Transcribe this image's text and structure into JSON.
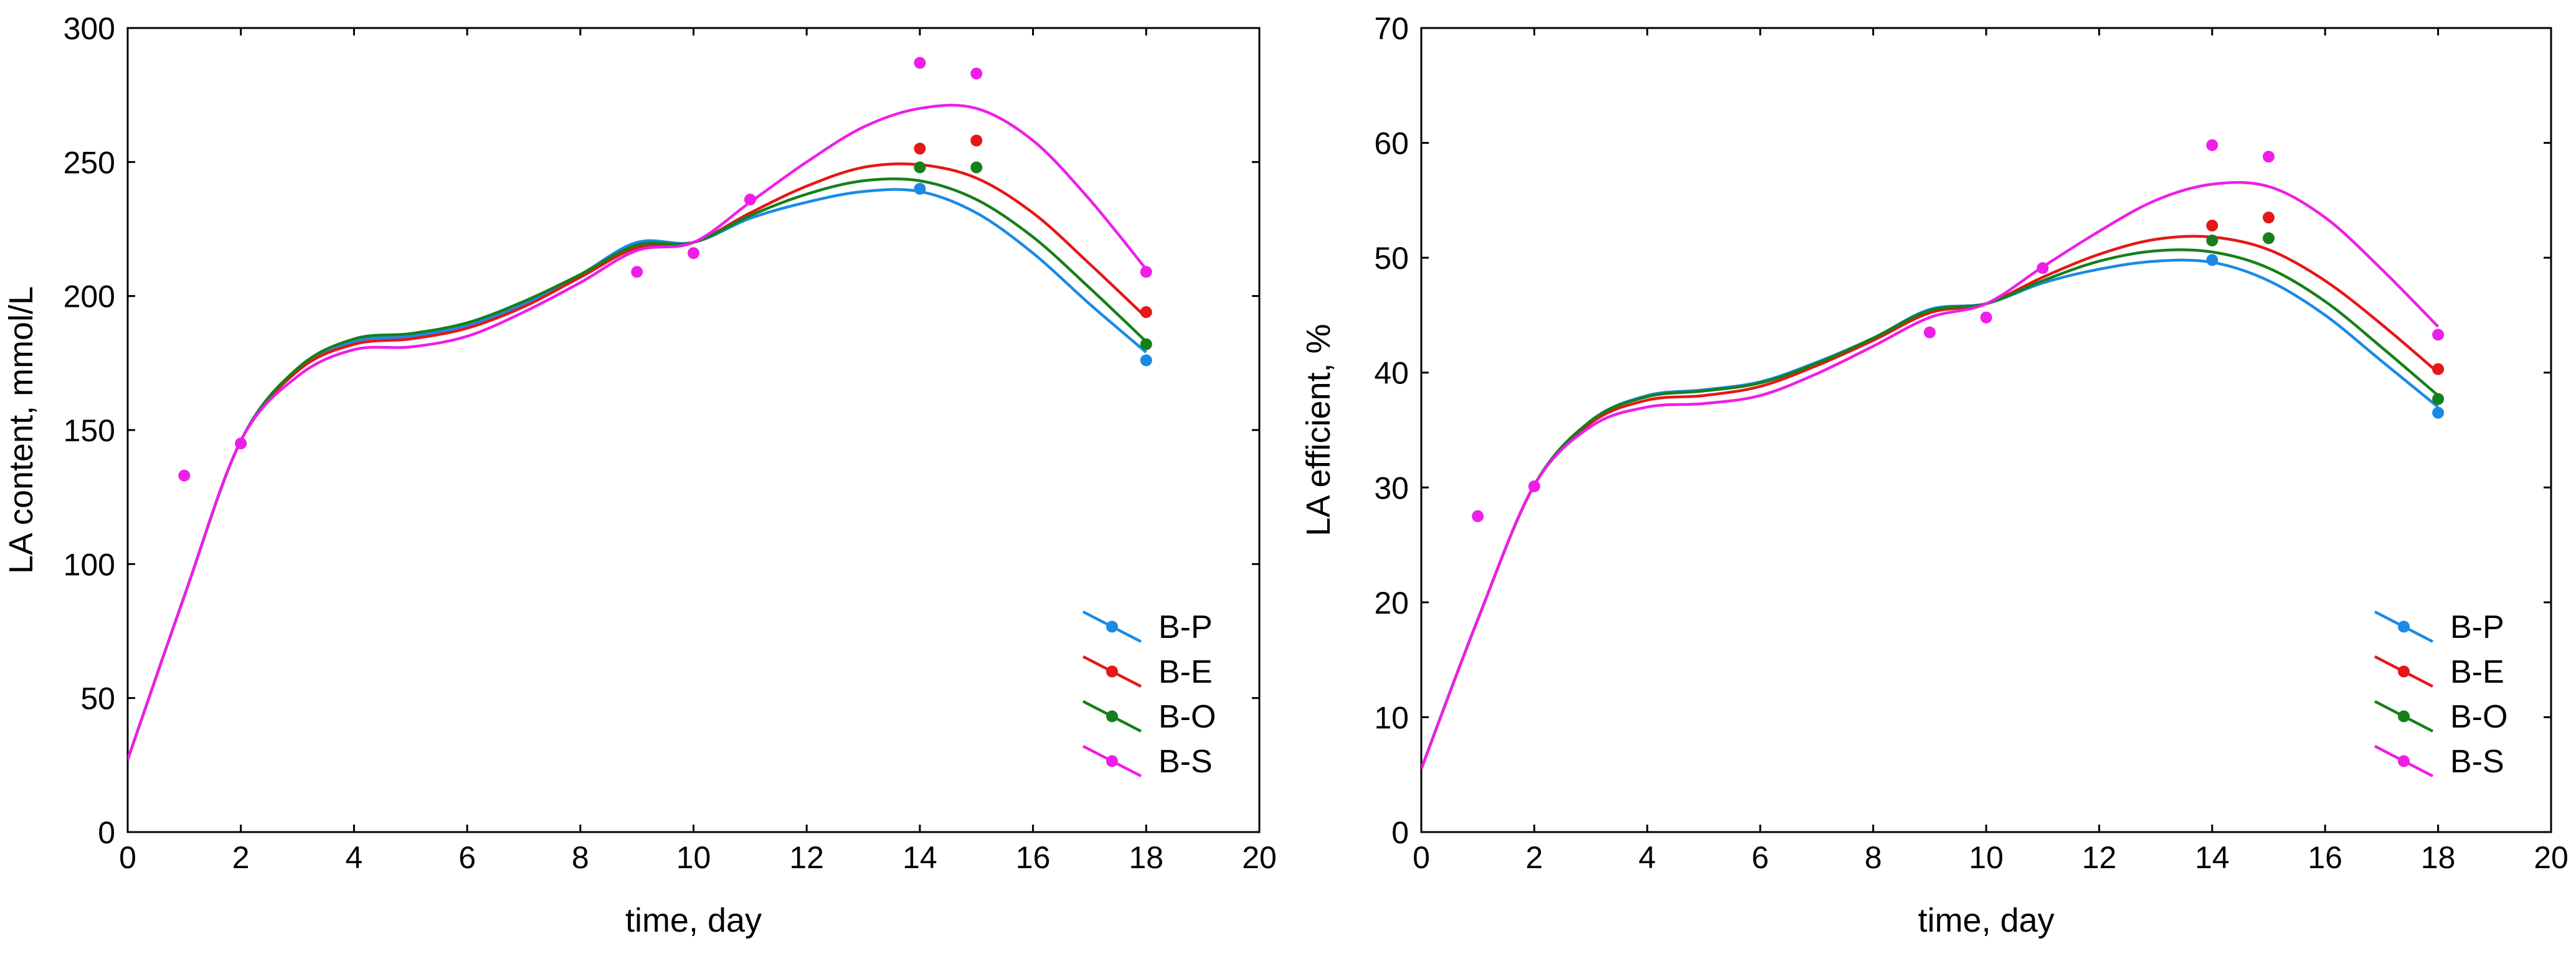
{
  "chart_data": [
    {
      "type": "line",
      "title": "",
      "xlabel": "time, day",
      "ylabel": "LA content, mmol/L",
      "xlim": [
        0,
        20
      ],
      "ylim": [
        0,
        300
      ],
      "xticks": [
        0,
        2,
        4,
        6,
        8,
        10,
        12,
        14,
        16,
        18,
        20
      ],
      "yticks": [
        0,
        50,
        100,
        150,
        200,
        250,
        300
      ],
      "grid": false,
      "legend_position": "bottom-right",
      "series": [
        {
          "name": "B-P",
          "color": "#1a8ae6",
          "points": [
            [
              14,
              240
            ],
            [
              18,
              176
            ]
          ],
          "curve": [
            [
              0,
              27
            ],
            [
              1,
              88
            ],
            [
              2,
              146
            ],
            [
              3,
              172
            ],
            [
              4,
              183
            ],
            [
              5,
              185
            ],
            [
              6,
              189
            ],
            [
              7,
              197
            ],
            [
              8,
              208
            ],
            [
              9,
              220
            ],
            [
              10,
              220
            ],
            [
              11,
              229
            ],
            [
              12,
              235
            ],
            [
              13,
              239
            ],
            [
              14,
              239
            ],
            [
              15,
              231
            ],
            [
              16,
              216
            ],
            [
              17,
              197
            ],
            [
              18,
              179
            ]
          ]
        },
        {
          "name": "B-E",
          "color": "#e61717",
          "points": [
            [
              14,
              255
            ],
            [
              15,
              258
            ],
            [
              18,
              194
            ]
          ],
          "curve": [
            [
              0,
              27
            ],
            [
              1,
              88
            ],
            [
              2,
              146
            ],
            [
              3,
              172
            ],
            [
              4,
              182
            ],
            [
              5,
              184
            ],
            [
              6,
              188
            ],
            [
              7,
              196
            ],
            [
              8,
              207
            ],
            [
              9,
              218
            ],
            [
              10,
              220
            ],
            [
              11,
              231
            ],
            [
              12,
              241
            ],
            [
              13,
              248
            ],
            [
              14,
              249
            ],
            [
              15,
              244
            ],
            [
              16,
              231
            ],
            [
              17,
              212
            ],
            [
              18,
              192
            ]
          ]
        },
        {
          "name": "B-O",
          "color": "#15801a",
          "points": [
            [
              14,
              248
            ],
            [
              15,
              248
            ],
            [
              18,
              182
            ]
          ],
          "curve": [
            [
              0,
              27
            ],
            [
              1,
              88
            ],
            [
              2,
              146
            ],
            [
              3,
              173
            ],
            [
              4,
              184
            ],
            [
              5,
              186
            ],
            [
              6,
              190
            ],
            [
              7,
              198
            ],
            [
              8,
              208
            ],
            [
              9,
              219
            ],
            [
              10,
              220
            ],
            [
              11,
              230
            ],
            [
              12,
              238
            ],
            [
              13,
              243
            ],
            [
              14,
              243
            ],
            [
              15,
              236
            ],
            [
              16,
              222
            ],
            [
              17,
              203
            ],
            [
              18,
              183
            ]
          ]
        },
        {
          "name": "B-S",
          "color": "#ee1ee8",
          "points": [
            [
              1,
              133
            ],
            [
              2,
              145
            ],
            [
              9,
              209
            ],
            [
              10,
              216
            ],
            [
              11,
              236
            ],
            [
              14,
              287
            ],
            [
              15,
              283
            ],
            [
              18,
              209
            ]
          ],
          "curve": [
            [
              0,
              27
            ],
            [
              1,
              88
            ],
            [
              2,
              146
            ],
            [
              3,
              170
            ],
            [
              4,
              180
            ],
            [
              5,
              181
            ],
            [
              6,
              185
            ],
            [
              7,
              194
            ],
            [
              8,
              205
            ],
            [
              9,
              217
            ],
            [
              10,
              220
            ],
            [
              11,
              235
            ],
            [
              12,
              250
            ],
            [
              13,
              263
            ],
            [
              14,
              270
            ],
            [
              15,
              270
            ],
            [
              16,
              258
            ],
            [
              17,
              236
            ],
            [
              18,
              210
            ]
          ]
        }
      ]
    },
    {
      "type": "line",
      "title": "",
      "xlabel": "time, day",
      "ylabel": "LA efficient, %",
      "xlim": [
        0,
        20
      ],
      "ylim": [
        0,
        70
      ],
      "xticks": [
        0,
        2,
        4,
        6,
        8,
        10,
        12,
        14,
        16,
        18,
        20
      ],
      "yticks": [
        0,
        10,
        20,
        30,
        40,
        50,
        60,
        70
      ],
      "grid": false,
      "legend_position": "bottom-right",
      "series": [
        {
          "name": "B-P",
          "color": "#1a8ae6",
          "points": [
            [
              14,
              49.8
            ],
            [
              18,
              36.5
            ]
          ],
          "curve": [
            [
              0,
              5.5
            ],
            [
              1,
              18.5
            ],
            [
              2,
              30.2
            ],
            [
              3,
              35.8
            ],
            [
              4,
              38.0
            ],
            [
              5,
              38.5
            ],
            [
              6,
              39.2
            ],
            [
              7,
              40.9
            ],
            [
              8,
              43.0
            ],
            [
              9,
              45.5
            ],
            [
              10,
              46.0
            ],
            [
              11,
              47.8
            ],
            [
              12,
              49.0
            ],
            [
              13,
              49.7
            ],
            [
              14,
              49.6
            ],
            [
              15,
              48.0
            ],
            [
              16,
              45.0
            ],
            [
              17,
              41.0
            ],
            [
              18,
              37.0
            ]
          ]
        },
        {
          "name": "B-E",
          "color": "#e61717",
          "points": [
            [
              14,
              52.8
            ],
            [
              15,
              53.5
            ],
            [
              18,
              40.3
            ]
          ],
          "curve": [
            [
              0,
              5.5
            ],
            [
              1,
              18.5
            ],
            [
              2,
              30.2
            ],
            [
              3,
              35.6
            ],
            [
              4,
              37.6
            ],
            [
              5,
              38.0
            ],
            [
              6,
              38.8
            ],
            [
              7,
              40.6
            ],
            [
              8,
              42.8
            ],
            [
              9,
              45.2
            ],
            [
              10,
              46.0
            ],
            [
              11,
              48.3
            ],
            [
              12,
              50.3
            ],
            [
              13,
              51.6
            ],
            [
              14,
              51.8
            ],
            [
              15,
              50.7
            ],
            [
              16,
              48.0
            ],
            [
              17,
              44.2
            ],
            [
              18,
              40.0
            ]
          ]
        },
        {
          "name": "B-O",
          "color": "#15801a",
          "points": [
            [
              14,
              51.5
            ],
            [
              15,
              51.7
            ],
            [
              18,
              37.7
            ]
          ],
          "curve": [
            [
              0,
              5.5
            ],
            [
              1,
              18.5
            ],
            [
              2,
              30.2
            ],
            [
              3,
              35.8
            ],
            [
              4,
              37.9
            ],
            [
              5,
              38.4
            ],
            [
              6,
              39.1
            ],
            [
              7,
              40.8
            ],
            [
              8,
              43.0
            ],
            [
              9,
              45.4
            ],
            [
              10,
              46.0
            ],
            [
              11,
              48.0
            ],
            [
              12,
              49.7
            ],
            [
              13,
              50.6
            ],
            [
              14,
              50.5
            ],
            [
              15,
              49.1
            ],
            [
              16,
              46.2
            ],
            [
              17,
              42.2
            ],
            [
              18,
              38.0
            ]
          ]
        },
        {
          "name": "B-S",
          "color": "#ee1ee8",
          "points": [
            [
              1,
              27.5
            ],
            [
              2,
              30.1
            ],
            [
              9,
              43.5
            ],
            [
              10,
              44.8
            ],
            [
              11,
              49.1
            ],
            [
              14,
              59.8
            ],
            [
              15,
              58.8
            ],
            [
              18,
              43.3
            ]
          ],
          "curve": [
            [
              0,
              5.5
            ],
            [
              1,
              18.5
            ],
            [
              2,
              30.2
            ],
            [
              3,
              35.3
            ],
            [
              4,
              37.0
            ],
            [
              5,
              37.3
            ],
            [
              6,
              38.0
            ],
            [
              7,
              39.9
            ],
            [
              8,
              42.3
            ],
            [
              9,
              44.8
            ],
            [
              10,
              46.0
            ],
            [
              11,
              49.2
            ],
            [
              12,
              52.3
            ],
            [
              13,
              55.0
            ],
            [
              14,
              56.4
            ],
            [
              15,
              56.2
            ],
            [
              16,
              53.5
            ],
            [
              17,
              49.0
            ],
            [
              18,
              44.0
            ]
          ]
        }
      ]
    }
  ]
}
